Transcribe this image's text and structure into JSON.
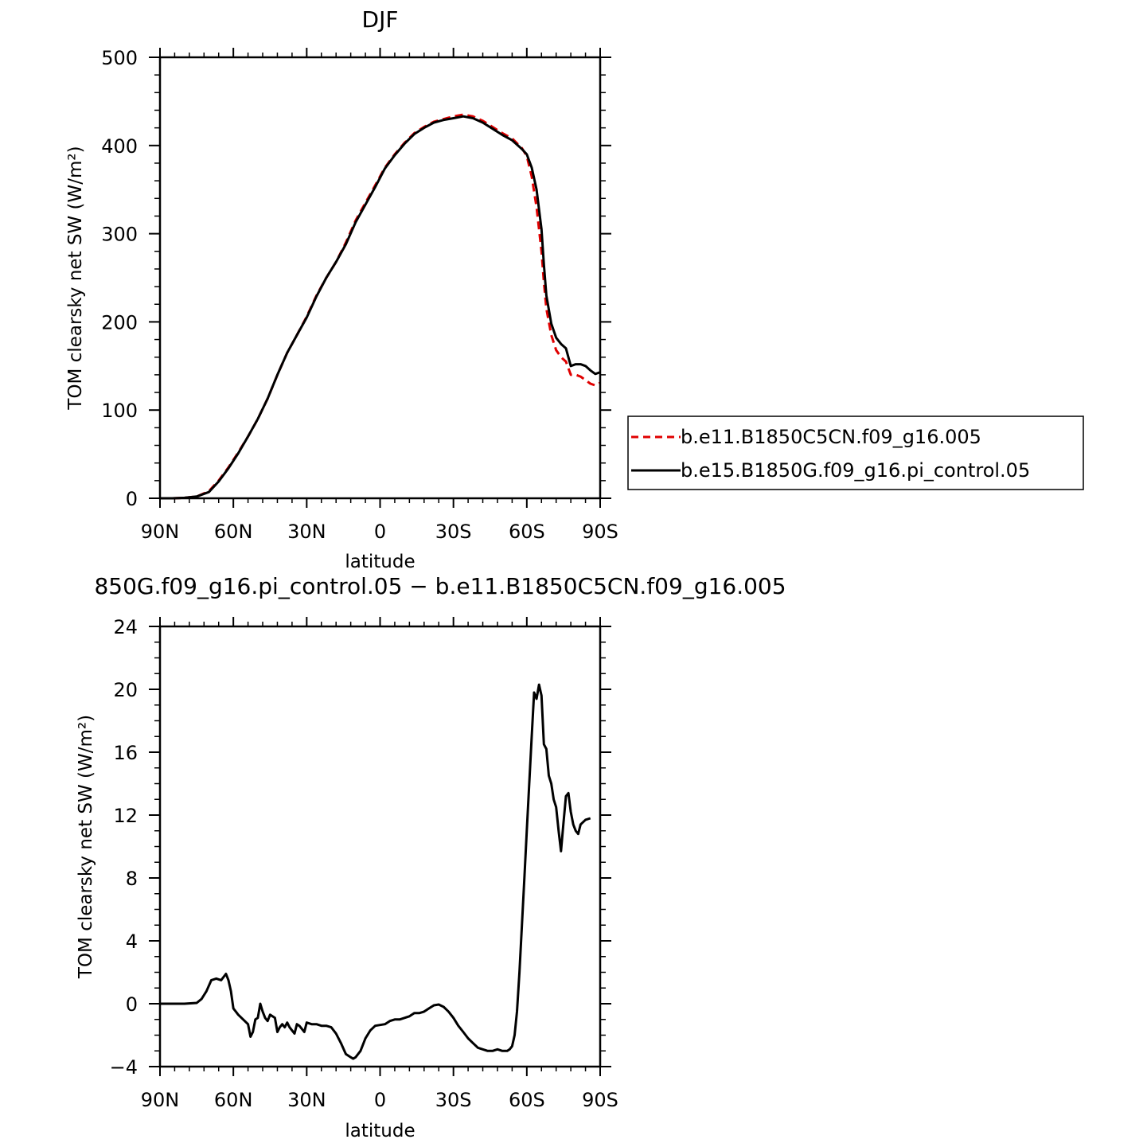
{
  "chart_data": [
    {
      "type": "line",
      "title": "DJF",
      "xlabel": "latitude",
      "ylabel": "TOM clearsky net SW (W/m²)",
      "xlim": [
        -90,
        90
      ],
      "ylim": [
        0,
        500
      ],
      "x_ticks": [
        -90,
        -60,
        -30,
        0,
        30,
        60,
        90
      ],
      "x_tick_labels": [
        "90N",
        "60N",
        "30N",
        "0",
        "30S",
        "60S",
        "90S"
      ],
      "y_ticks": [
        0,
        100,
        200,
        300,
        400,
        500
      ],
      "y_tick_labels": [
        "0",
        "100",
        "200",
        "300",
        "400",
        "500"
      ],
      "legend_position": "right",
      "series": [
        {
          "name": "b.e11.B1850C5CN.f09_g16.005",
          "color": "#e00000",
          "style": "dashed",
          "points": [
            [
              -90,
              0
            ],
            [
              -85,
              0
            ],
            [
              -80,
              0.5
            ],
            [
              -75,
              2
            ],
            [
              -70,
              8
            ],
            [
              -66,
              20
            ],
            [
              -62,
              35
            ],
            [
              -58,
              52
            ],
            [
              -54,
              70
            ],
            [
              -50,
              90
            ],
            [
              -46,
              113
            ],
            [
              -42,
              140
            ],
            [
              -38,
              165
            ],
            [
              -34,
              185
            ],
            [
              -30,
              206
            ],
            [
              -26,
              230
            ],
            [
              -22,
              250
            ],
            [
              -18,
              268
            ],
            [
              -14,
              290
            ],
            [
              -10,
              315
            ],
            [
              -6,
              335
            ],
            [
              -2,
              355
            ],
            [
              2,
              375
            ],
            [
              6,
              390
            ],
            [
              10,
              403
            ],
            [
              14,
              414
            ],
            [
              18,
              421
            ],
            [
              22,
              427
            ],
            [
              26,
              430
            ],
            [
              30,
              433
            ],
            [
              34,
              435
            ],
            [
              38,
              433
            ],
            [
              42,
              428
            ],
            [
              46,
              421
            ],
            [
              50,
              414
            ],
            [
              54,
              408
            ],
            [
              58,
              397
            ],
            [
              60,
              388
            ],
            [
              62,
              365
            ],
            [
              64,
              330
            ],
            [
              66,
              280
            ],
            [
              67,
              245
            ],
            [
              68,
              215
            ],
            [
              70,
              185
            ],
            [
              72,
              168
            ],
            [
              74,
              160
            ],
            [
              76,
              155
            ],
            [
              78,
              140
            ],
            [
              80,
              140
            ],
            [
              82,
              138
            ],
            [
              84,
              134
            ],
            [
              86,
              130
            ],
            [
              88,
              128
            ],
            [
              90,
              131
            ]
          ]
        },
        {
          "name": "b.e15.B1850G.f09_g16.pi_control.05",
          "color": "#000000",
          "style": "solid",
          "points": [
            [
              -90,
              0
            ],
            [
              -85,
              0
            ],
            [
              -80,
              0.5
            ],
            [
              -75,
              2
            ],
            [
              -70,
              7
            ],
            [
              -66,
              19
            ],
            [
              -62,
              34
            ],
            [
              -58,
              51
            ],
            [
              -54,
              70
            ],
            [
              -50,
              90
            ],
            [
              -46,
              113
            ],
            [
              -42,
              140
            ],
            [
              -38,
              165
            ],
            [
              -34,
              185
            ],
            [
              -30,
              205
            ],
            [
              -26,
              229
            ],
            [
              -22,
              250
            ],
            [
              -18,
              268
            ],
            [
              -14,
              288
            ],
            [
              -10,
              313
            ],
            [
              -6,
              333
            ],
            [
              -2,
              353
            ],
            [
              2,
              374
            ],
            [
              6,
              389
            ],
            [
              10,
              402
            ],
            [
              14,
              413
            ],
            [
              18,
              420
            ],
            [
              22,
              426
            ],
            [
              26,
              429
            ],
            [
              30,
              431
            ],
            [
              34,
              433
            ],
            [
              38,
              431
            ],
            [
              42,
              426
            ],
            [
              46,
              419
            ],
            [
              50,
              412
            ],
            [
              54,
              406
            ],
            [
              58,
              396
            ],
            [
              60,
              390
            ],
            [
              62,
              375
            ],
            [
              64,
              350
            ],
            [
              66,
              305
            ],
            [
              67,
              265
            ],
            [
              68,
              230
            ],
            [
              70,
              198
            ],
            [
              72,
              182
            ],
            [
              74,
              175
            ],
            [
              76,
              170
            ],
            [
              78,
              150
            ],
            [
              80,
              152
            ],
            [
              82,
              152
            ],
            [
              84,
              150
            ],
            [
              86,
              145
            ],
            [
              88,
              141
            ],
            [
              90,
              143
            ]
          ]
        }
      ]
    },
    {
      "type": "line",
      "title": "850G.f09_g16.pi_control.05 − b.e11.B1850C5CN.f09_g16.005",
      "xlabel": "latitude",
      "ylabel": "TOM clearsky net SW (W/m²)",
      "xlim": [
        -90,
        90
      ],
      "ylim": [
        -4,
        24
      ],
      "x_ticks": [
        -90,
        -60,
        -30,
        0,
        30,
        60,
        90
      ],
      "x_tick_labels": [
        "90N",
        "60N",
        "30N",
        "0",
        "30S",
        "60S",
        "90S"
      ],
      "y_ticks": [
        -4,
        0,
        4,
        8,
        12,
        16,
        20,
        24
      ],
      "y_tick_labels": [
        "−4",
        "0",
        "4",
        "8",
        "12",
        "16",
        "20",
        "24"
      ],
      "series": [
        {
          "color": "#000000",
          "style": "solid",
          "points": [
            [
              -90,
              0
            ],
            [
              -80,
              0
            ],
            [
              -75,
              0.05
            ],
            [
              -73,
              0.3
            ],
            [
              -71,
              0.8
            ],
            [
              -69,
              1.5
            ],
            [
              -67,
              1.6
            ],
            [
              -65,
              1.5
            ],
            [
              -63,
              1.9
            ],
            [
              -62,
              1.5
            ],
            [
              -61,
              0.8
            ],
            [
              -60,
              -0.3
            ],
            [
              -58,
              -0.7
            ],
            [
              -56,
              -1
            ],
            [
              -54,
              -1.3
            ],
            [
              -53,
              -2.1
            ],
            [
              -52,
              -1.8
            ],
            [
              -51,
              -1
            ],
            [
              -50,
              -0.9
            ],
            [
              -49,
              0
            ],
            [
              -48,
              -0.5
            ],
            [
              -47,
              -0.9
            ],
            [
              -46,
              -1.1
            ],
            [
              -45,
              -0.7
            ],
            [
              -43,
              -0.9
            ],
            [
              -42,
              -1.8
            ],
            [
              -41,
              -1.5
            ],
            [
              -40,
              -1.3
            ],
            [
              -39,
              -1.5
            ],
            [
              -38,
              -1.2
            ],
            [
              -37,
              -1.5
            ],
            [
              -36,
              -1.7
            ],
            [
              -35,
              -1.9
            ],
            [
              -34,
              -1.3
            ],
            [
              -33,
              -1.4
            ],
            [
              -32,
              -1.6
            ],
            [
              -31,
              -1.8
            ],
            [
              -30,
              -1.2
            ],
            [
              -28,
              -1.3
            ],
            [
              -26,
              -1.3
            ],
            [
              -24,
              -1.4
            ],
            [
              -22,
              -1.4
            ],
            [
              -20,
              -1.5
            ],
            [
              -18,
              -1.9
            ],
            [
              -16,
              -2.5
            ],
            [
              -14,
              -3.2
            ],
            [
              -12,
              -3.4
            ],
            [
              -11,
              -3.5
            ],
            [
              -10,
              -3.4
            ],
            [
              -8,
              -3
            ],
            [
              -6,
              -2.2
            ],
            [
              -4,
              -1.7
            ],
            [
              -2,
              -1.4
            ],
            [
              2,
              -1.3
            ],
            [
              4,
              -1.1
            ],
            [
              6,
              -1
            ],
            [
              8,
              -1
            ],
            [
              10,
              -0.9
            ],
            [
              12,
              -0.8
            ],
            [
              14,
              -0.6
            ],
            [
              16,
              -0.6
            ],
            [
              18,
              -0.5
            ],
            [
              20,
              -0.3
            ],
            [
              22,
              -0.1
            ],
            [
              24,
              -0.05
            ],
            [
              26,
              -0.2
            ],
            [
              28,
              -0.5
            ],
            [
              30,
              -0.9
            ],
            [
              32,
              -1.4
            ],
            [
              34,
              -1.8
            ],
            [
              36,
              -2.2
            ],
            [
              38,
              -2.5
            ],
            [
              40,
              -2.8
            ],
            [
              42,
              -2.9
            ],
            [
              44,
              -3
            ],
            [
              46,
              -3
            ],
            [
              48,
              -2.9
            ],
            [
              50,
              -3
            ],
            [
              52,
              -3
            ],
            [
              53,
              -2.9
            ],
            [
              54,
              -2.7
            ],
            [
              55,
              -2
            ],
            [
              56,
              -0.5
            ],
            [
              57,
              2
            ],
            [
              58,
              5
            ],
            [
              59,
              8
            ],
            [
              60,
              11
            ],
            [
              61,
              14
            ],
            [
              62,
              17
            ],
            [
              63,
              19.8
            ],
            [
              64,
              19.4
            ],
            [
              65,
              20.3
            ],
            [
              66,
              19.6
            ],
            [
              67,
              16.5
            ],
            [
              68,
              16.2
            ],
            [
              69,
              14.5
            ],
            [
              70,
              14
            ],
            [
              71,
              13
            ],
            [
              72,
              12.5
            ],
            [
              73,
              11
            ],
            [
              74,
              9.7
            ],
            [
              75,
              11.5
            ],
            [
              76,
              13.2
            ],
            [
              77,
              13.4
            ],
            [
              78,
              12.2
            ],
            [
              79,
              11.4
            ],
            [
              80,
              11
            ],
            [
              81,
              10.8
            ],
            [
              82,
              11.4
            ],
            [
              84,
              11.7
            ],
            [
              86,
              11.8
            ]
          ]
        }
      ]
    }
  ]
}
